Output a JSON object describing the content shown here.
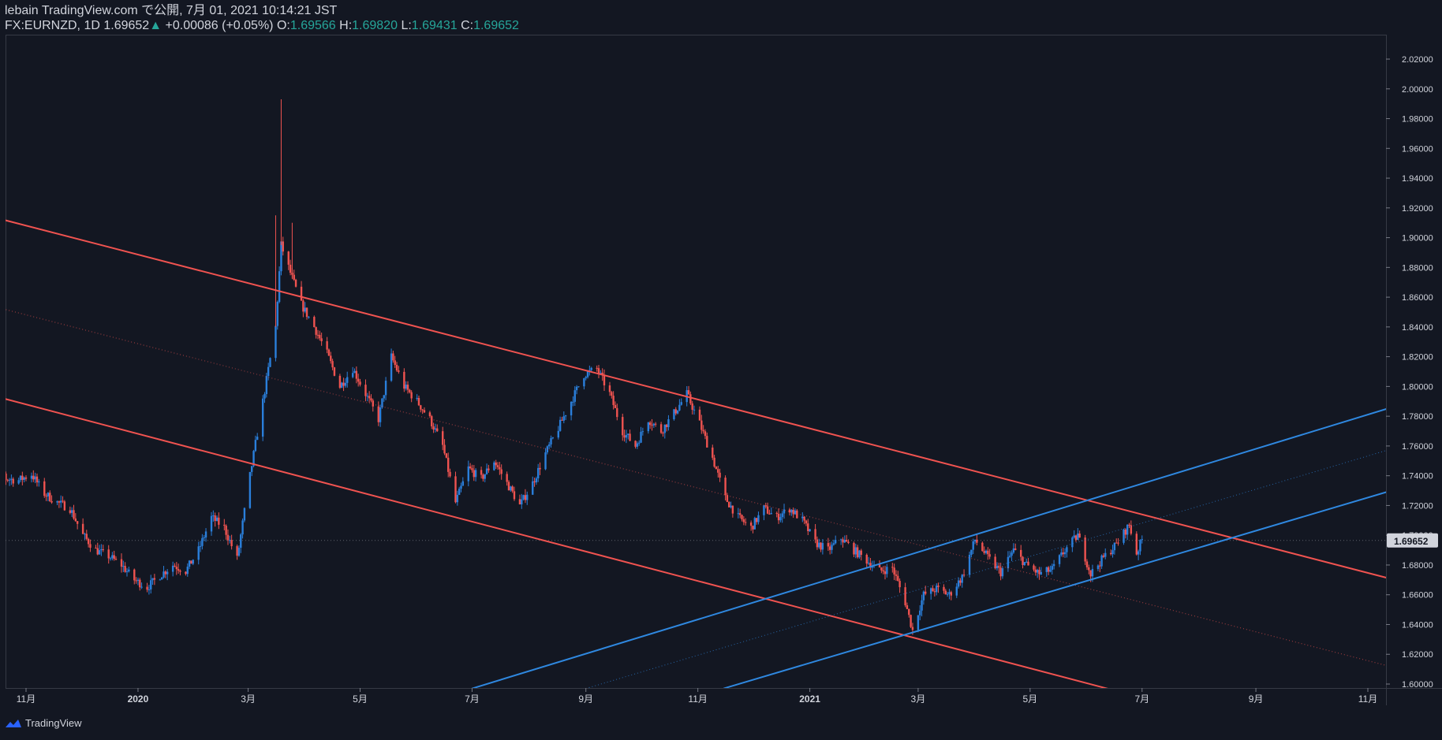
{
  "header": {
    "published": "lebain TradingView.com で公開, 7月 01, 2021 10:14:21 JST",
    "symbol": "FX:EURNZD, 1D",
    "last": "1.69652",
    "change_arrow": "▲",
    "change": "+0.00086 (+0.05%)",
    "o_label": "O:",
    "o_value": "1.69566",
    "h_label": "H:",
    "h_value": "1.69820",
    "l_label": "L:",
    "l_value": "1.69431",
    "c_label": "C:",
    "c_value": "1.69652"
  },
  "footer": {
    "brand": "TradingView"
  },
  "colors": {
    "background": "#131722",
    "up_candle": "#2a7fdb",
    "down_candle": "#ef5350",
    "red_channel": "#f05350",
    "blue_channel": "#2f88e0",
    "price_label_bg": "#d1d4dc"
  },
  "chart_data": {
    "type": "candlestick",
    "symbol": "FX:EURNZD",
    "timeframe": "1D",
    "ylim": [
      1.59,
      2.03
    ],
    "price_ticks": [
      "2.02000",
      "2.00000",
      "1.98000",
      "1.96000",
      "1.94000",
      "1.92000",
      "1.90000",
      "1.88000",
      "1.86000",
      "1.84000",
      "1.82000",
      "1.80000",
      "1.78000",
      "1.76000",
      "1.74000",
      "1.72000",
      "1.70000",
      "1.68000",
      "1.66000",
      "1.64000",
      "1.62000",
      "1.60000"
    ],
    "current_price": "1.69652",
    "time_ticks": [
      {
        "label": "11月",
        "date": "2019-11-01"
      },
      {
        "label": "2020",
        "date": "2020-01-01"
      },
      {
        "label": "3月",
        "date": "2020-03-01"
      },
      {
        "label": "5月",
        "date": "2020-05-01"
      },
      {
        "label": "7月",
        "date": "2020-07-01"
      },
      {
        "label": "9月",
        "date": "2020-09-01"
      },
      {
        "label": "11月",
        "date": "2020-11-01"
      },
      {
        "label": "2021",
        "date": "2021-01-01"
      },
      {
        "label": "3月",
        "date": "2021-03-01"
      },
      {
        "label": "5月",
        "date": "2021-05-01"
      },
      {
        "label": "7月",
        "date": "2021-07-01"
      },
      {
        "label": "9月",
        "date": "2021-09-01"
      },
      {
        "label": "11月",
        "date": "2021-11-01"
      }
    ],
    "path": [
      [
        "2019-10-07",
        1.735
      ],
      [
        "2019-10-14",
        1.745
      ],
      [
        "2019-10-21",
        1.738
      ],
      [
        "2019-10-28",
        1.737
      ],
      [
        "2019-11-04",
        1.741
      ],
      [
        "2019-11-11",
        1.728
      ],
      [
        "2019-11-18",
        1.722
      ],
      [
        "2019-11-25",
        1.718
      ],
      [
        "2019-12-02",
        1.7
      ],
      [
        "2019-12-09",
        1.69
      ],
      [
        "2019-12-16",
        1.686
      ],
      [
        "2019-12-23",
        1.68
      ],
      [
        "2019-12-30",
        1.67
      ],
      [
        "2020-01-06",
        1.665
      ],
      [
        "2020-01-13",
        1.673
      ],
      [
        "2020-01-20",
        1.68
      ],
      [
        "2020-01-27",
        1.676
      ],
      [
        "2020-02-03",
        1.69
      ],
      [
        "2020-02-10",
        1.712
      ],
      [
        "2020-02-17",
        1.705
      ],
      [
        "2020-02-24",
        1.684
      ],
      [
        "2020-03-02",
        1.74
      ],
      [
        "2020-03-09",
        1.79
      ],
      [
        "2020-03-16",
        1.84
      ],
      [
        "2020-03-19",
        1.895
      ],
      [
        "2020-03-23",
        1.88
      ],
      [
        "2020-03-30",
        1.855
      ],
      [
        "2020-04-06",
        1.84
      ],
      [
        "2020-04-13",
        1.822
      ],
      [
        "2020-04-20",
        1.8
      ],
      [
        "2020-04-27",
        1.812
      ],
      [
        "2020-05-04",
        1.795
      ],
      [
        "2020-05-11",
        1.778
      ],
      [
        "2020-05-18",
        1.82
      ],
      [
        "2020-05-25",
        1.8
      ],
      [
        "2020-06-01",
        1.79
      ],
      [
        "2020-06-08",
        1.778
      ],
      [
        "2020-06-15",
        1.76
      ],
      [
        "2020-06-22",
        1.722
      ],
      [
        "2020-06-29",
        1.745
      ],
      [
        "2020-07-06",
        1.738
      ],
      [
        "2020-07-13",
        1.75
      ],
      [
        "2020-07-20",
        1.735
      ],
      [
        "2020-07-27",
        1.72
      ],
      [
        "2020-08-03",
        1.735
      ],
      [
        "2020-08-10",
        1.755
      ],
      [
        "2020-08-17",
        1.772
      ],
      [
        "2020-08-24",
        1.79
      ],
      [
        "2020-08-31",
        1.808
      ],
      [
        "2020-09-07",
        1.812
      ],
      [
        "2020-09-14",
        1.795
      ],
      [
        "2020-09-21",
        1.77
      ],
      [
        "2020-09-28",
        1.76
      ],
      [
        "2020-10-05",
        1.778
      ],
      [
        "2020-10-12",
        1.77
      ],
      [
        "2020-10-19",
        1.782
      ],
      [
        "2020-10-26",
        1.795
      ],
      [
        "2020-11-02",
        1.775
      ],
      [
        "2020-11-09",
        1.752
      ],
      [
        "2020-11-16",
        1.725
      ],
      [
        "2020-11-23",
        1.712
      ],
      [
        "2020-11-30",
        1.705
      ],
      [
        "2020-12-07",
        1.718
      ],
      [
        "2020-12-14",
        1.712
      ],
      [
        "2020-12-21",
        1.718
      ],
      [
        "2020-12-28",
        1.71
      ],
      [
        "2021-01-04",
        1.695
      ],
      [
        "2021-01-11",
        1.69
      ],
      [
        "2021-01-18",
        1.698
      ],
      [
        "2021-01-25",
        1.69
      ],
      [
        "2021-02-01",
        1.683
      ],
      [
        "2021-02-08",
        1.676
      ],
      [
        "2021-02-15",
        1.678
      ],
      [
        "2021-02-22",
        1.655
      ],
      [
        "2021-02-26",
        1.636
      ],
      [
        "2021-03-04",
        1.66
      ],
      [
        "2021-03-11",
        1.664
      ],
      [
        "2021-03-18",
        1.66
      ],
      [
        "2021-03-25",
        1.672
      ],
      [
        "2021-04-01",
        1.697
      ],
      [
        "2021-04-08",
        1.685
      ],
      [
        "2021-04-15",
        1.675
      ],
      [
        "2021-04-22",
        1.69
      ],
      [
        "2021-04-29",
        1.68
      ],
      [
        "2021-05-06",
        1.674
      ],
      [
        "2021-05-13",
        1.677
      ],
      [
        "2021-05-20",
        1.69
      ],
      [
        "2021-05-27",
        1.7
      ],
      [
        "2021-06-03",
        1.674
      ],
      [
        "2021-06-10",
        1.685
      ],
      [
        "2021-06-17",
        1.694
      ],
      [
        "2021-06-24",
        1.707
      ],
      [
        "2021-06-28",
        1.688
      ],
      [
        "2021-07-01",
        1.697
      ]
    ],
    "wicks": [
      {
        "date": "2020-03-16",
        "high": 1.915
      },
      {
        "date": "2020-03-19",
        "high": 1.993
      },
      {
        "date": "2020-03-25",
        "high": 1.91
      }
    ],
    "trendlines": [
      {
        "name": "red-channel-upper",
        "color": "red",
        "points": [
          [
            "2019-10-01",
            1.918
          ],
          [
            "2021-11-22",
            1.668
          ]
        ]
      },
      {
        "name": "red-channel-lower",
        "color": "red",
        "points": [
          [
            "2019-10-01",
            1.798
          ],
          [
            "2021-06-15",
            1.596
          ]
        ]
      },
      {
        "name": "red-channel-mid",
        "color": "red",
        "style": "dotted",
        "points": [
          [
            "2019-10-01",
            1.858
          ],
          [
            "2021-11-22",
            1.609
          ]
        ]
      },
      {
        "name": "blue-channel-upper",
        "color": "blue",
        "points": [
          [
            "2020-07-01",
            1.597
          ],
          [
            "2021-11-22",
            1.789
          ]
        ]
      },
      {
        "name": "blue-channel-lower",
        "color": "blue",
        "points": [
          [
            "2020-11-15",
            1.597
          ],
          [
            "2021-11-22",
            1.733
          ]
        ]
      },
      {
        "name": "blue-channel-mid",
        "color": "blue",
        "style": "dotted",
        "points": [
          [
            "2020-09-01",
            1.597
          ],
          [
            "2021-11-22",
            1.761
          ]
        ]
      }
    ]
  }
}
